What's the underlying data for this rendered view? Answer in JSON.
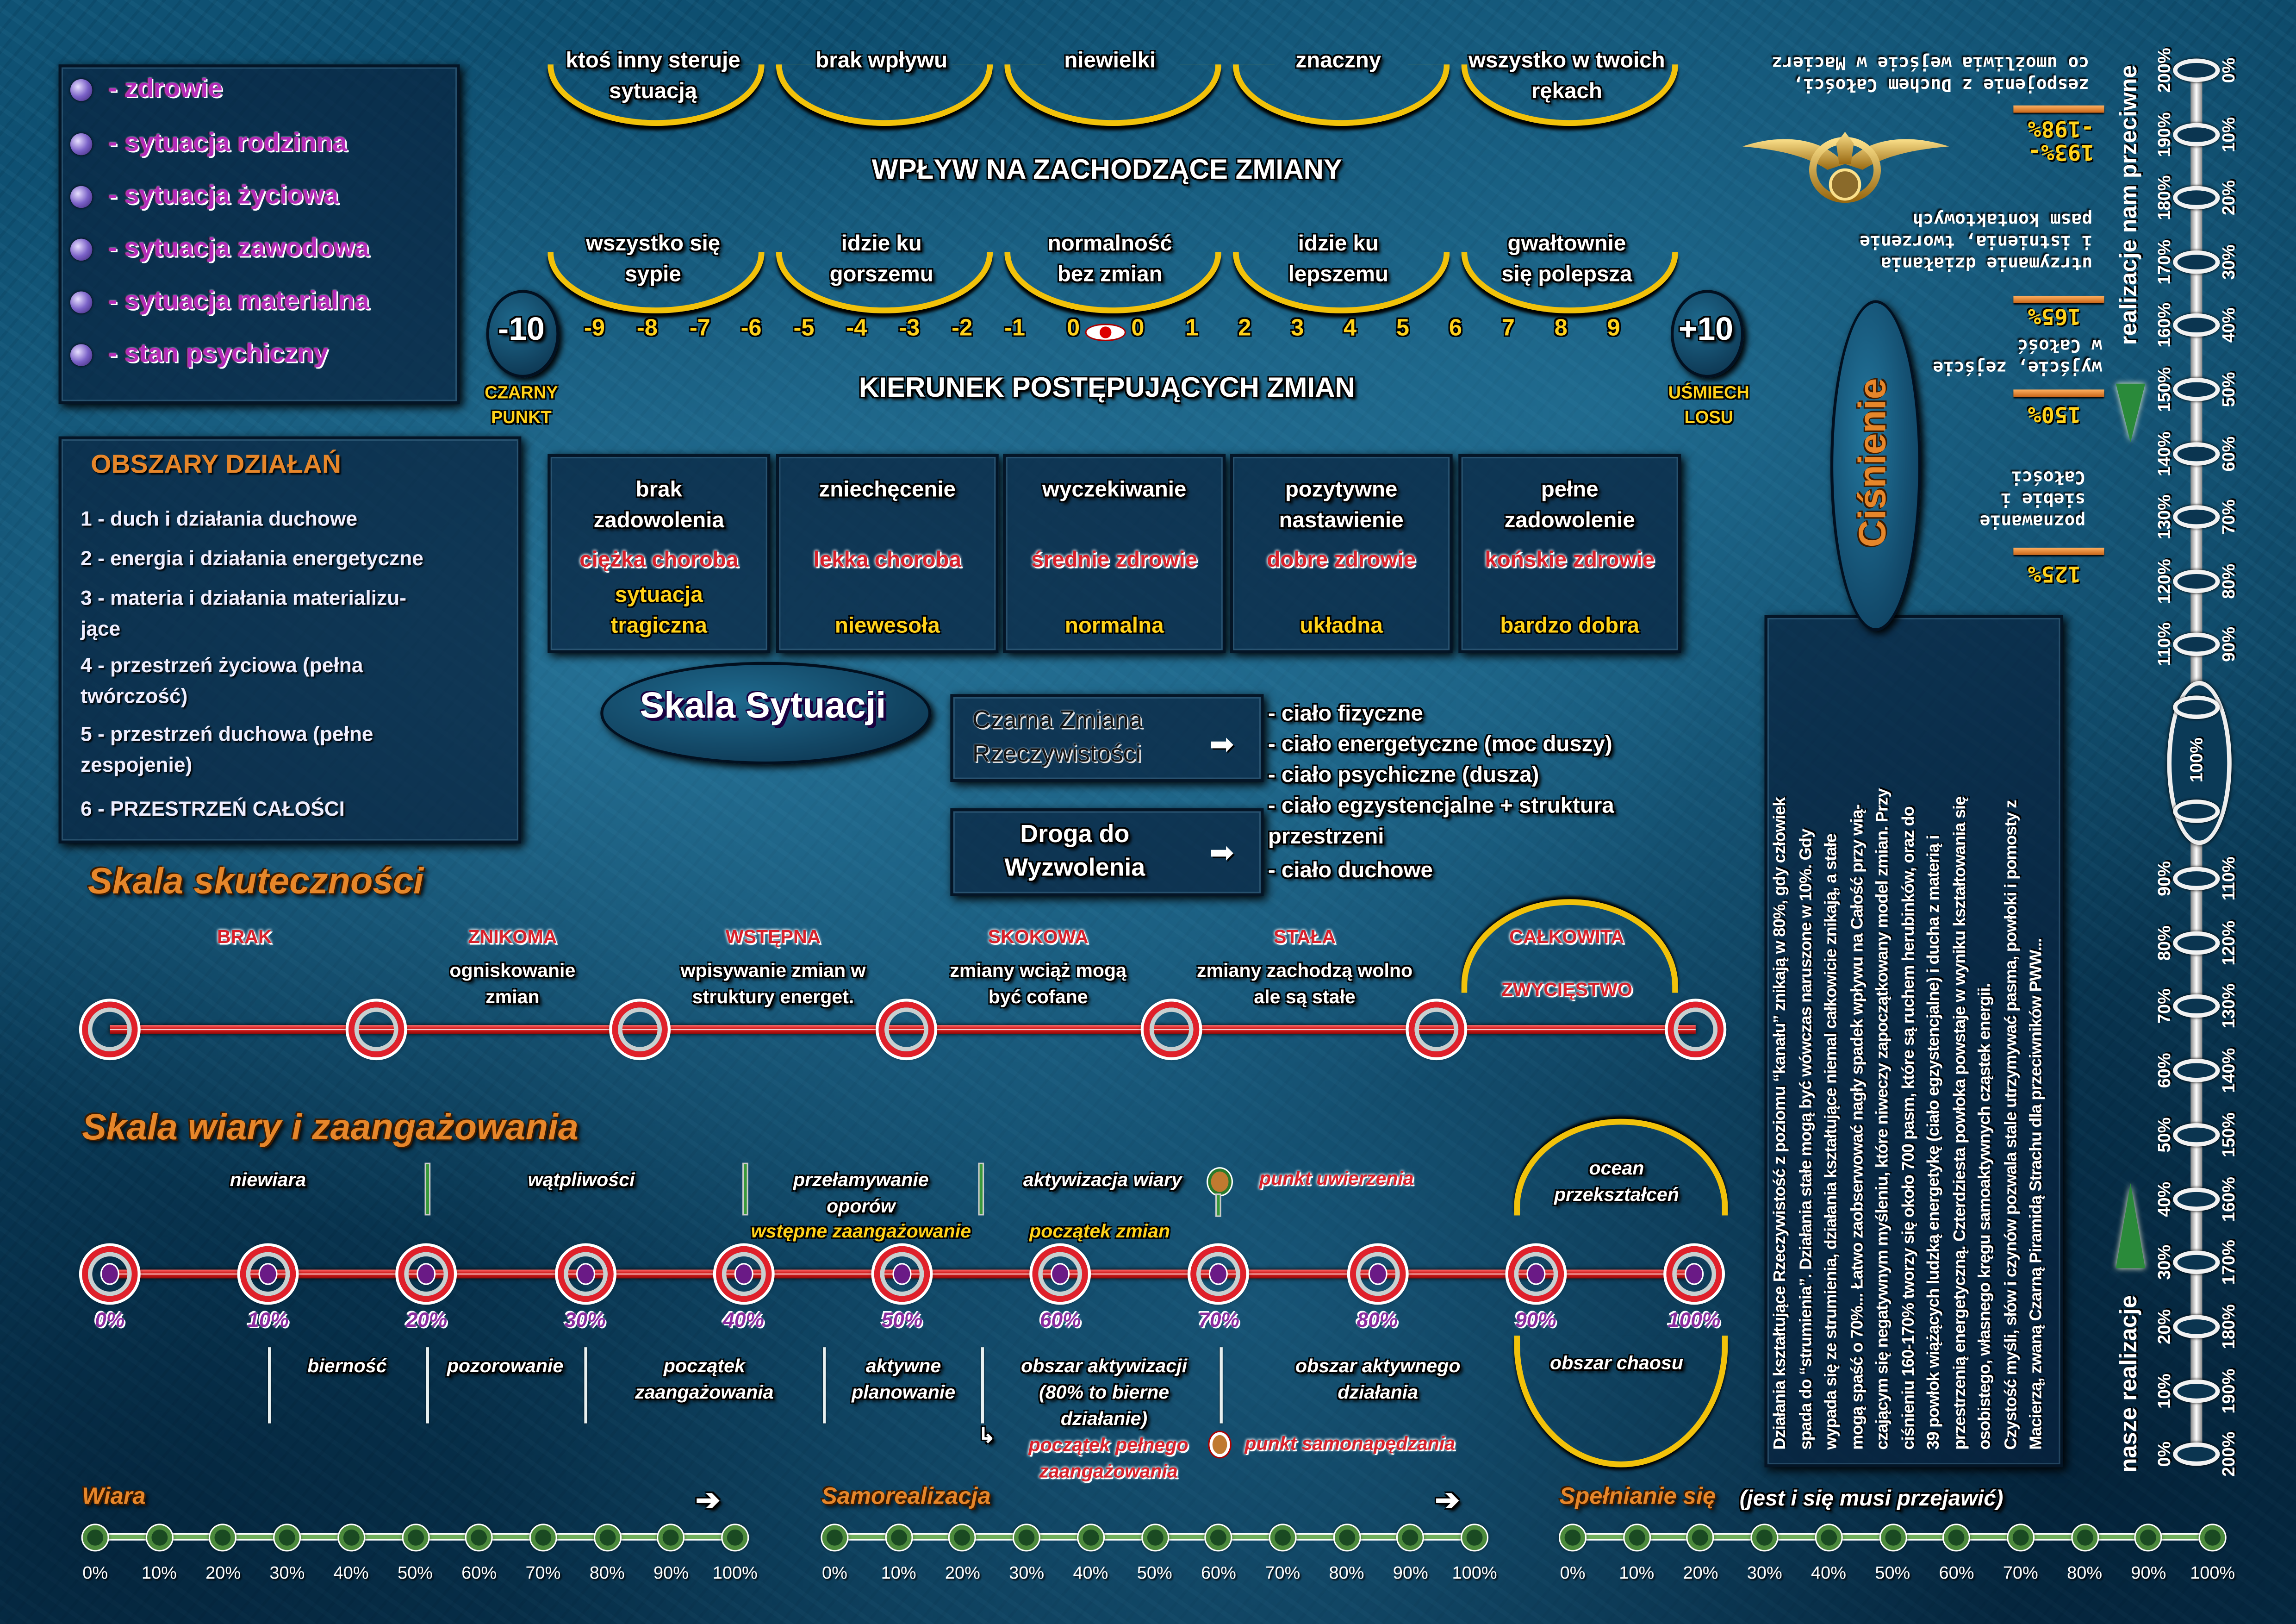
{
  "legend": {
    "items": [
      {
        "label": "- zdrowie"
      },
      {
        "label": "- sytuacja rodzinna"
      },
      {
        "label": "- sytuacja życiowa"
      },
      {
        "label": "- sytuacja zawodowa"
      },
      {
        "label": "- sytuacja materialna"
      },
      {
        "label": "- stan psychiczny"
      }
    ]
  },
  "areas": {
    "title": "OBSZARY DZIAŁAŃ",
    "items": [
      "1 - duch i działania duchowe",
      "2 - energia i działania energetyczne",
      "3 - materia i działania materializu-\n      jące",
      "4 - przestrzeń życiowa (pełna\n      twórczość)",
      "5 - przestrzeń duchowa (pełne\n      zespojenie)",
      "6 - PRZESTRZEŃ CAŁOŚCI"
    ]
  },
  "influence": {
    "title": "WPŁYW NA ZACHODZĄCE ZMIANY",
    "levels": [
      "ktoś inny steruje\nsytuacją",
      "brak wpływu",
      "niewielki",
      "znaczny",
      "wszystko w twoich\nrękach"
    ]
  },
  "direction": {
    "title": "KIERUNEK POSTĘPUJĄCYCH ZMIAN",
    "levels": [
      "wszystko się\nsypie",
      "idzie ku\ngorszemu",
      "normalność\nbez zmian",
      "idzie ku\nlepszemu",
      "gwałtownie\nsię polepsza"
    ],
    "min": "-10",
    "max": "+10",
    "min_label": "CZARNY\nPUNKT",
    "max_label": "UŚMIECH\nLOSU",
    "scale": [
      "-9",
      "-8",
      "-7",
      "-6",
      "-5",
      "-4",
      "-3",
      "-2",
      "-1",
      "0",
      "0",
      "1",
      "2",
      "3",
      "4",
      "5",
      "6",
      "7",
      "8",
      "9"
    ]
  },
  "situation": {
    "boxes": [
      {
        "mood": "brak\nzadowolenia",
        "health": "ciężka choroba",
        "state": "sytuacja\ntragiczna"
      },
      {
        "mood": "zniechęcenie",
        "health": "lekka choroba",
        "state": "niewesoła"
      },
      {
        "mood": "wyczekiwanie",
        "health": "średnie zdrowie",
        "state": "normalna"
      },
      {
        "mood": "pozytywne\nnastawienie",
        "health": "dobre zdrowie",
        "state": "układna"
      },
      {
        "mood": "pełne\nzadowolenie",
        "health": "końskie zdrowie",
        "state": "bardzo dobra"
      }
    ],
    "scale_label": "Skala Sytuacji",
    "black_change": "Czarna Zmiana\nRzeczywistości",
    "liberation": "Droga do\nWyzwolenia",
    "bodies": [
      "- ciało fizyczne",
      "- ciało energetyczne (moc duszy)",
      "- ciało psychiczne (dusza)",
      "- ciało egzystencjalne + struktura\n  przestrzeni",
      "- ciało duchowe"
    ]
  },
  "effectiveness": {
    "title": "Skala skuteczności",
    "stages": [
      {
        "name": "BRAK",
        "desc": ""
      },
      {
        "name": "ZNIKOMA",
        "desc": "ogniskowanie\nzmian"
      },
      {
        "name": "WSTĘPNA",
        "desc": "wpisywanie zmian w\nstruktury energet."
      },
      {
        "name": "SKOKOWA",
        "desc": "zmiany wciąż mogą\nbyć cofane"
      },
      {
        "name": "STAŁA",
        "desc": "zmiany zachodzą wolno\nale są stałe"
      },
      {
        "name": "CAŁKOWITA",
        "desc": "ZWYCIĘSTWO"
      }
    ]
  },
  "faith": {
    "title": "Skala wiary i zaangażowania",
    "top": [
      "niewiara",
      "wątpliwości",
      "przełamywanie\noporów",
      "aktywizacja wiary"
    ],
    "belief_point": "punkt uwierzenia",
    "initial_commitment": "wstępne zaangażowanie",
    "change_start": "początek zmian",
    "percents": [
      "0%",
      "10%",
      "20%",
      "30%",
      "40%",
      "50%",
      "60%",
      "70%",
      "80%",
      "90%",
      "100%"
    ],
    "bottom": [
      "bierność",
      "pozorowanie",
      "początek\nzaangażowania",
      "aktywne\nplanowanie",
      "obszar aktywizacji\n(80% to bierne\ndziałanie)",
      "obszar aktywnego\ndziałania"
    ],
    "full_commitment": "początek pełnego\nzaangażowania",
    "self_drive_point": "punkt samonapędzania",
    "ocean": "ocean\nprzekształceń",
    "chaos": "obszar chaosu"
  },
  "bottom_scales": [
    {
      "title": "Wiara",
      "subtitle": ""
    },
    {
      "title": "Samorealizacja",
      "subtitle": ""
    },
    {
      "title": "Spełnianie się",
      "subtitle": "(jest i się musi przejawić)"
    }
  ],
  "bottom_ticks": [
    "0%",
    "10%",
    "20%",
    "30%",
    "40%",
    "50%",
    "60%",
    "70%",
    "80%",
    "90%",
    "100%"
  ],
  "info_text": [
    "Działania kształtujące Rzeczywistość z poziomu “kanału” znikają w 80%, gdy człowiek",
    "spada do “strumienia”. Działania stałe mogą być wówczas naruszone w 10%. Gdy",
    "wypada się ze strumienia, działania kształtujące niemal całkowicie znikają, a stałe",
    "mogą spaść o 70%... Łatwo zaobserwować nagły spadek wpływu na Całość przy wią-",
    "czającym się negatywnym myśleniu, które niweczy zapoczątkowany model zmian. Przy",
    "ciśnieniu 160-170% tworzy się około 700 pasm, które są ruchem herubinków, oraz do",
    "39 powłok wiążących ludzką energetykę (ciało egzystencjalne) i ducha z materią i",
    "przestrzenią energetyczną. Czterdziesta powłoka powstaje w wyniku kształtowania się",
    "osobistego, własnego kręgu samoaktywnych cząstek energii.",
    "Czystość myśli, słów i czynów pozwala stale utrzymywać pasma, powłoki i pomosty z",
    "Macierzą, zwaną Czarną Piramidą Strachu dla przeciwników PWW..."
  ],
  "pressure": {
    "title": "Ciśnienie",
    "levels": [
      {
        "value": "125%",
        "desc": "poznawanie\nsiebie i\nCałości"
      },
      {
        "value": "150%",
        "desc": "wyjście, zejście\n w Całość"
      },
      {
        "value": "165%",
        "desc": "utrzymanie działania\ni istnienia, tworzenie\npasm kontaktowych"
      },
      {
        "value": "193%-\n-198%",
        "desc": "zespojenie z Duchem Całości,\nco umożliwia wejście w Macierz"
      }
    ]
  },
  "vertical_scale": {
    "against_label": "realizacje nam przeciwne",
    "ours_label": "nasze realizacje",
    "center": "100%",
    "top_left": [
      "200%",
      "190%",
      "180%",
      "170%",
      "160%",
      "150%",
      "140%",
      "130%",
      "120%",
      "110%"
    ],
    "top_right": [
      "0%",
      "10%",
      "20%",
      "30%",
      "40%",
      "50%",
      "60%",
      "70%",
      "80%",
      "90%"
    ],
    "bottom_left": [
      "90%",
      "80%",
      "70%",
      "60%",
      "50%",
      "40%",
      "30%",
      "20%",
      "10%",
      "0%"
    ],
    "bottom_right": [
      "110%",
      "120%",
      "130%",
      "140%",
      "150%",
      "160%",
      "170%",
      "180%",
      "190%",
      "200%"
    ]
  },
  "colors": {
    "gold": "#f2c20a",
    "red": "#d8202a",
    "orange": "#e6862a",
    "purple": "#8a2a9e",
    "green": "#4c8a3c"
  }
}
